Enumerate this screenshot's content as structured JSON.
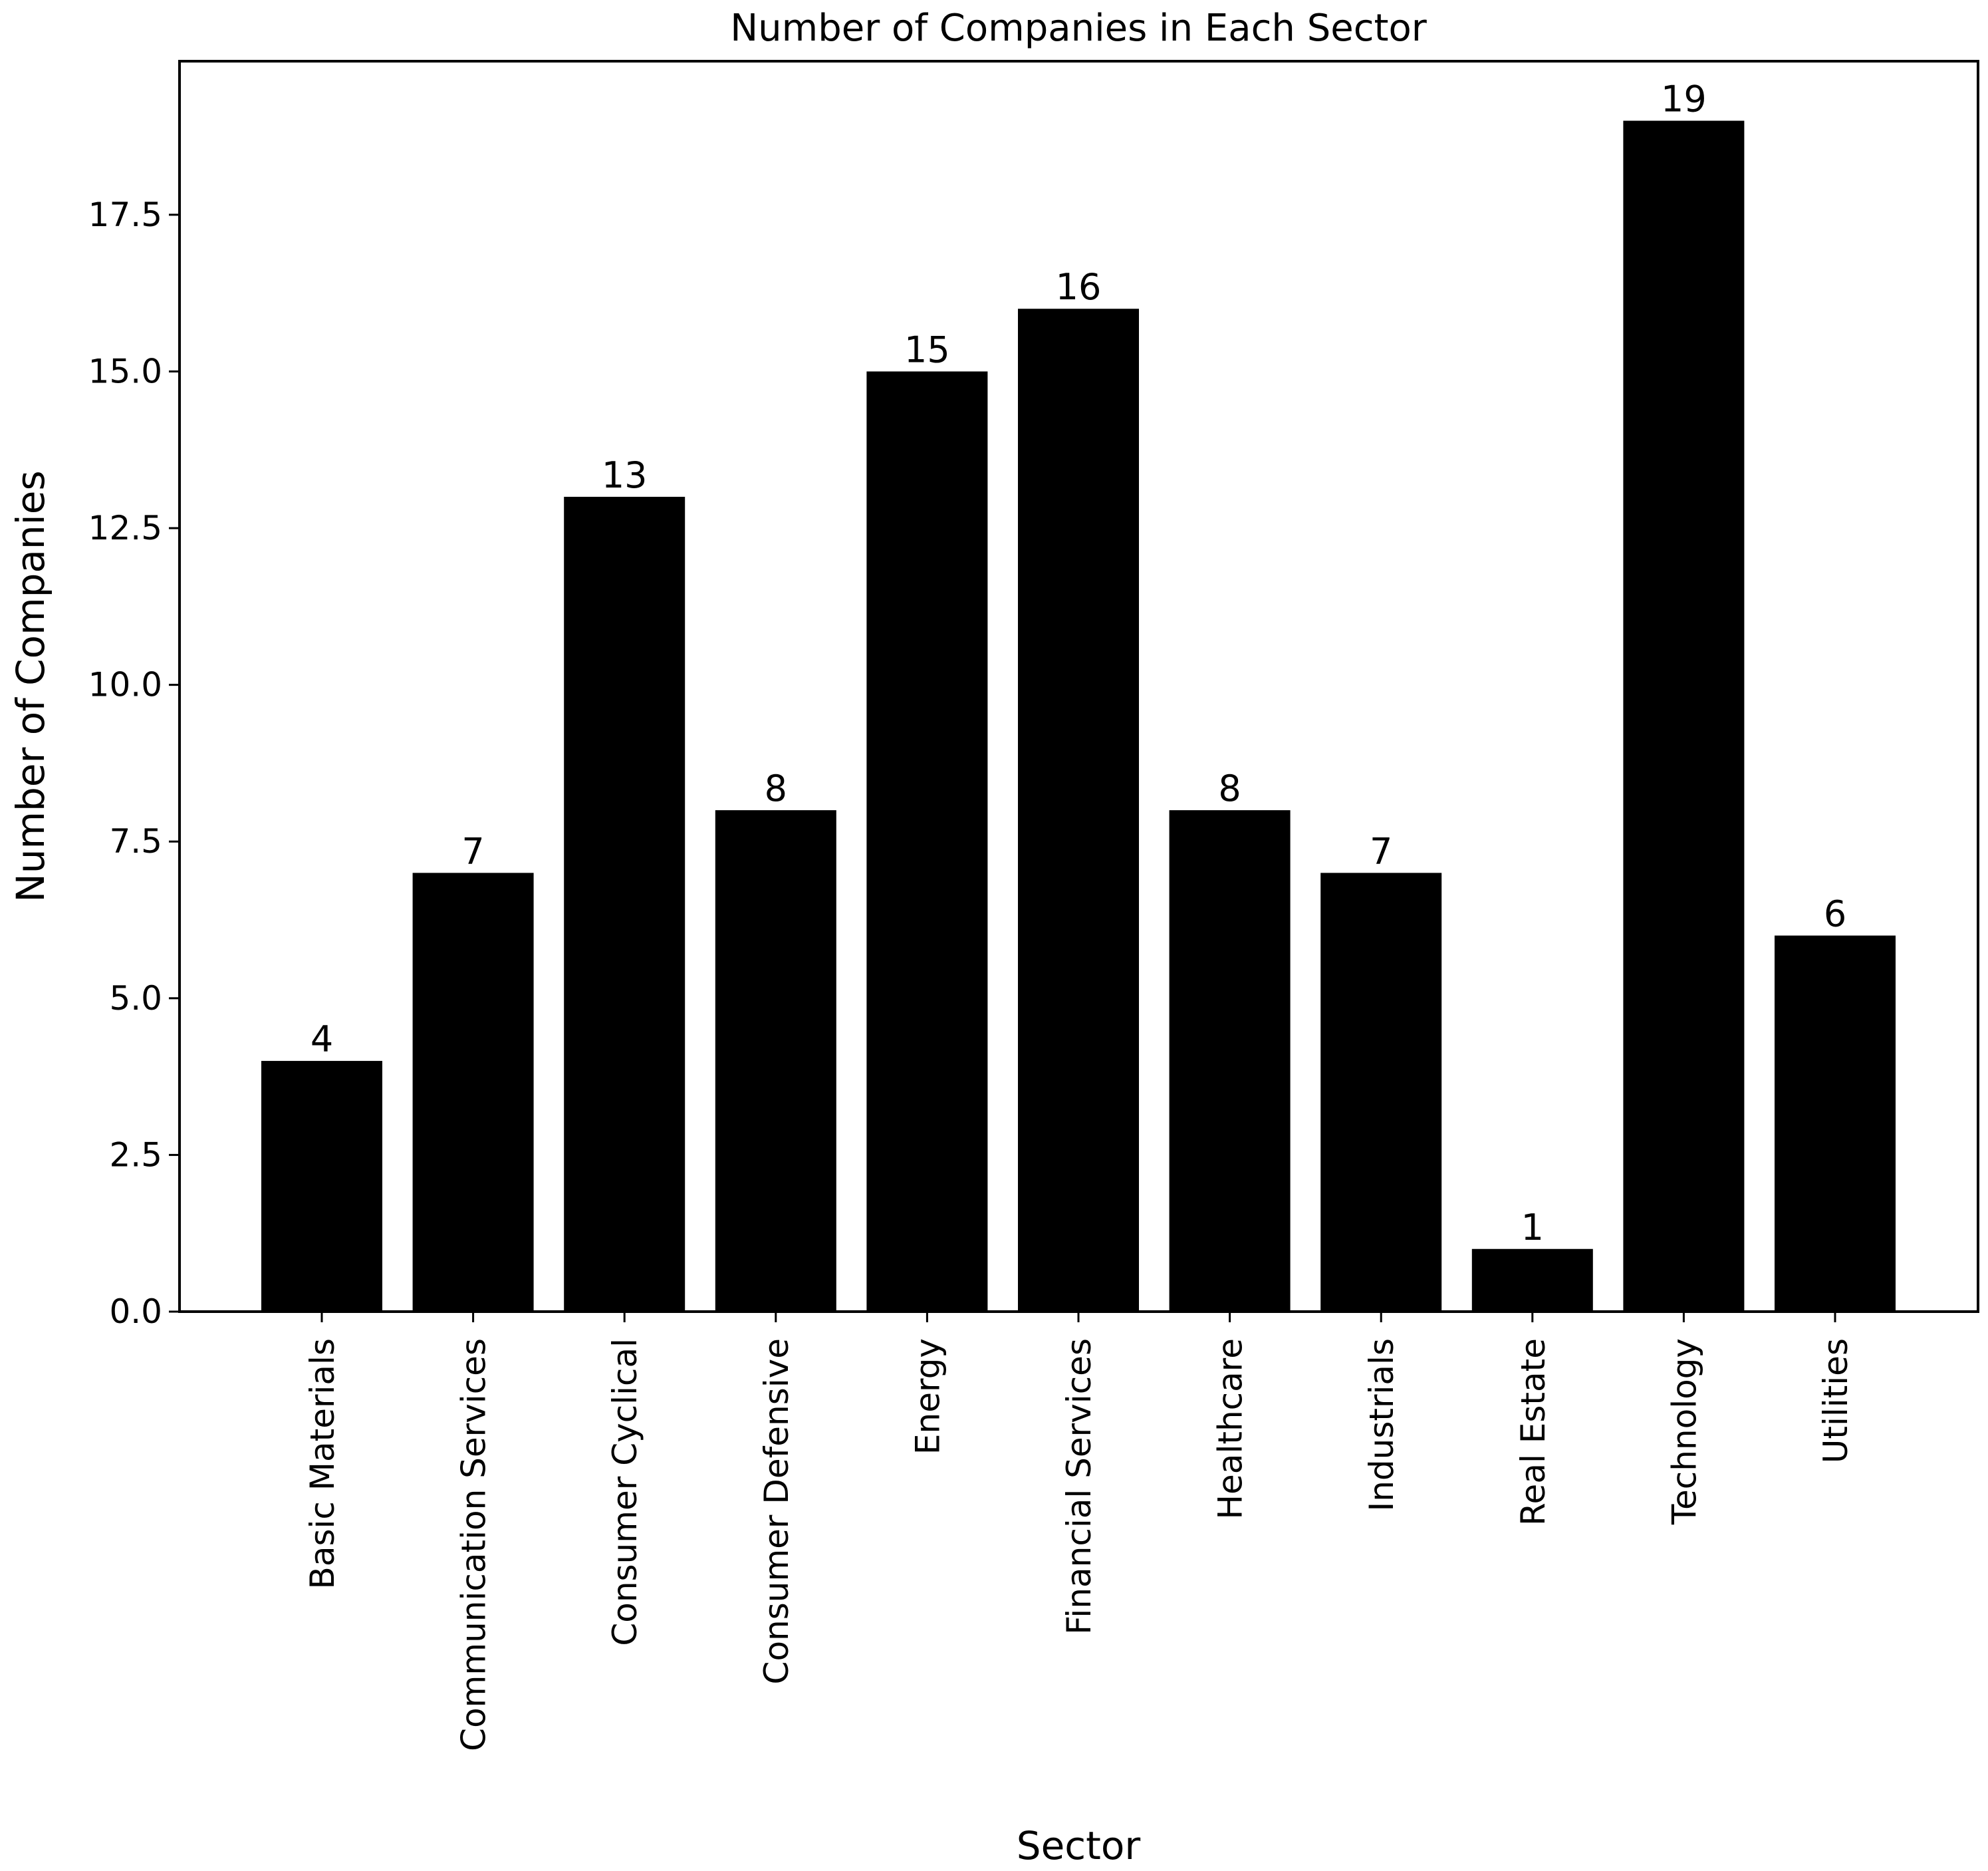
{
  "chart_data": {
    "type": "bar",
    "title": "Number of Companies in Each Sector",
    "xlabel": "Sector",
    "ylabel": "Number of Companies",
    "categories": [
      "Basic Materials",
      "Communication Services",
      "Consumer Cyclical",
      "Consumer Defensive",
      "Energy",
      "Financial Services",
      "Healthcare",
      "Industrials",
      "Real Estate",
      "Technology",
      "Utilities"
    ],
    "values": [
      4,
      7,
      13,
      8,
      15,
      16,
      8,
      7,
      1,
      19,
      6
    ],
    "data_labels": [
      "4",
      "7",
      "13",
      "8",
      "15",
      "16",
      "8",
      "7",
      "1",
      "19",
      "6"
    ],
    "yticks": [
      0.0,
      2.5,
      5.0,
      7.5,
      10.0,
      12.5,
      15.0,
      17.5
    ],
    "ytick_labels": [
      "0.0",
      "2.5",
      "5.0",
      "7.5",
      "10.0",
      "12.5",
      "15.0",
      "17.5"
    ],
    "ylim": [
      0,
      19.95
    ],
    "grid": false,
    "bar_color": "#000000"
  }
}
